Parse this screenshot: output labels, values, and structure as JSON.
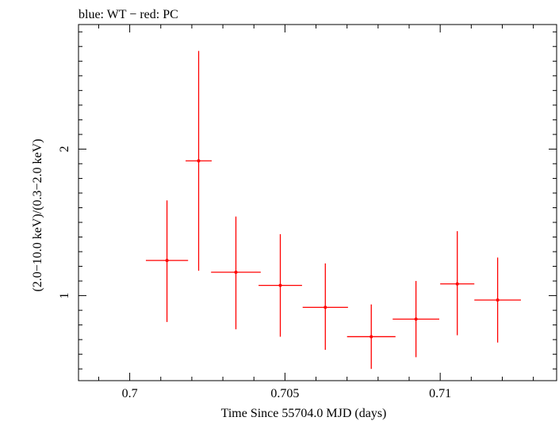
{
  "chart_data": {
    "type": "scatter",
    "title": "blue: WT − red: PC",
    "xlabel": "Time Since 55704.0 MJD (days)",
    "ylabel": "(2.0−10.0 keV)/(0.3−2.0 keV)",
    "xlim": [
      0.69835,
      0.71375
    ],
    "ylim": [
      0.42,
      2.85
    ],
    "x_ticks": [
      {
        "value": 0.7,
        "label": "0.7"
      },
      {
        "value": 0.705,
        "label": "0.705"
      },
      {
        "value": 0.71,
        "label": "0.71"
      }
    ],
    "y_ticks": [
      {
        "value": 1,
        "label": "1"
      },
      {
        "value": 2,
        "label": "2"
      }
    ],
    "grid": false,
    "series": [
      {
        "color": "#ff0000",
        "points": [
          {
            "x": 0.7012,
            "xerr": 0.00068,
            "y": 1.24,
            "ylo": 0.82,
            "yhi": 1.65
          },
          {
            "x": 0.70222,
            "xerr": 0.00042,
            "y": 1.92,
            "ylo": 1.17,
            "yhi": 2.67
          },
          {
            "x": 0.70342,
            "xerr": 0.0008,
            "y": 1.16,
            "ylo": 0.77,
            "yhi": 1.54
          },
          {
            "x": 0.70485,
            "xerr": 0.0007,
            "y": 1.07,
            "ylo": 0.72,
            "yhi": 1.42
          },
          {
            "x": 0.7063,
            "xerr": 0.00073,
            "y": 0.92,
            "ylo": 0.63,
            "yhi": 1.22
          },
          {
            "x": 0.70778,
            "xerr": 0.00078,
            "y": 0.72,
            "ylo": 0.5,
            "yhi": 0.94
          },
          {
            "x": 0.70922,
            "xerr": 0.00075,
            "y": 0.84,
            "ylo": 0.58,
            "yhi": 1.1
          },
          {
            "x": 0.71055,
            "xerr": 0.00055,
            "y": 1.08,
            "ylo": 0.73,
            "yhi": 1.44
          },
          {
            "x": 0.71185,
            "xerr": 0.00075,
            "y": 0.97,
            "ylo": 0.68,
            "yhi": 1.26
          }
        ]
      }
    ]
  }
}
